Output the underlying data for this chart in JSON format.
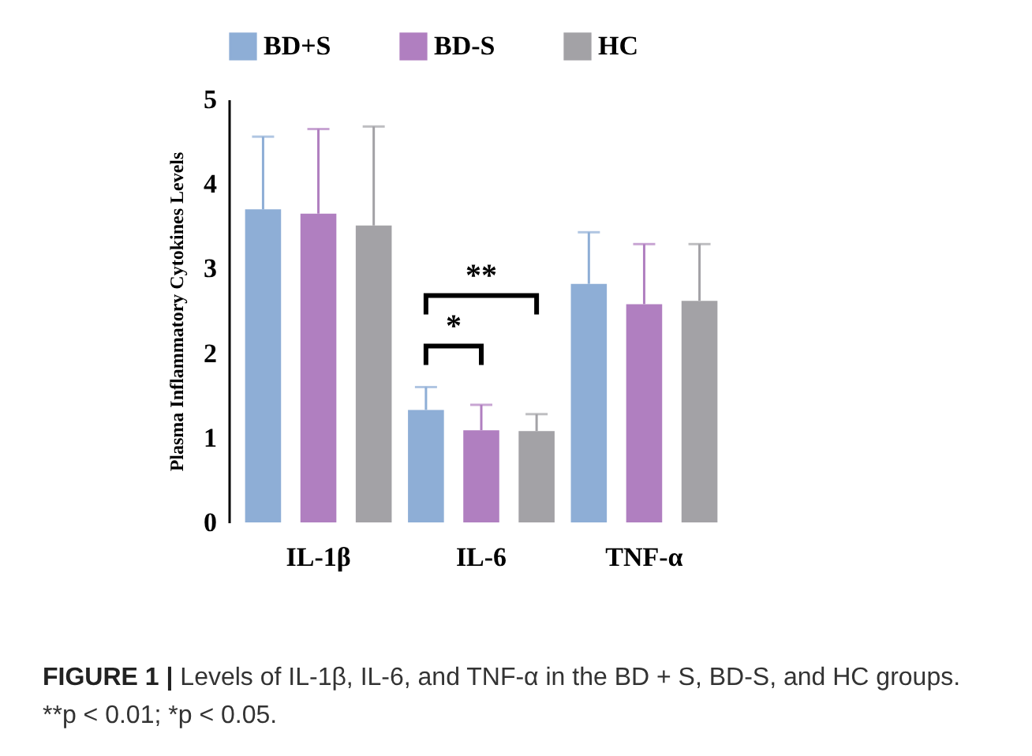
{
  "chart_data": {
    "type": "bar",
    "ylabel": "Plasma Inflammatory Cytokines Levels",
    "categories": [
      "IL-1β",
      "IL-6",
      "TNF-α"
    ],
    "series": [
      {
        "name": "BD+S",
        "color": "#8eaed6",
        "values": [
          3.7,
          1.33,
          2.82
        ],
        "errors": [
          [
            3.7,
            4.56
          ],
          [
            1.33,
            1.6
          ],
          [
            2.82,
            3.43
          ]
        ]
      },
      {
        "name": "BD-S",
        "color": "#b07fc0",
        "values": [
          3.65,
          1.09,
          2.58
        ],
        "errors": [
          [
            3.65,
            4.65
          ],
          [
            1.09,
            1.39
          ],
          [
            2.58,
            3.29
          ]
        ]
      },
      {
        "name": "HC",
        "color": "#a3a2a6",
        "values": [
          3.51,
          1.08,
          2.62
        ],
        "errors": [
          [
            3.51,
            4.68
          ],
          [
            1.08,
            1.28
          ],
          [
            2.62,
            3.29
          ]
        ]
      }
    ],
    "ylim": [
      0,
      5
    ],
    "yticks": [
      0,
      1,
      2,
      3,
      4,
      5
    ],
    "grid": false,
    "legend": "top",
    "annotations": [
      "*",
      "**",
      "FIGURE 1 |",
      "Levels of IL-1β, IL-6, and TNF-α in the BD + S, BD-S, and HC groups. **p < 0.01; *p < 0.05."
    ]
  }
}
